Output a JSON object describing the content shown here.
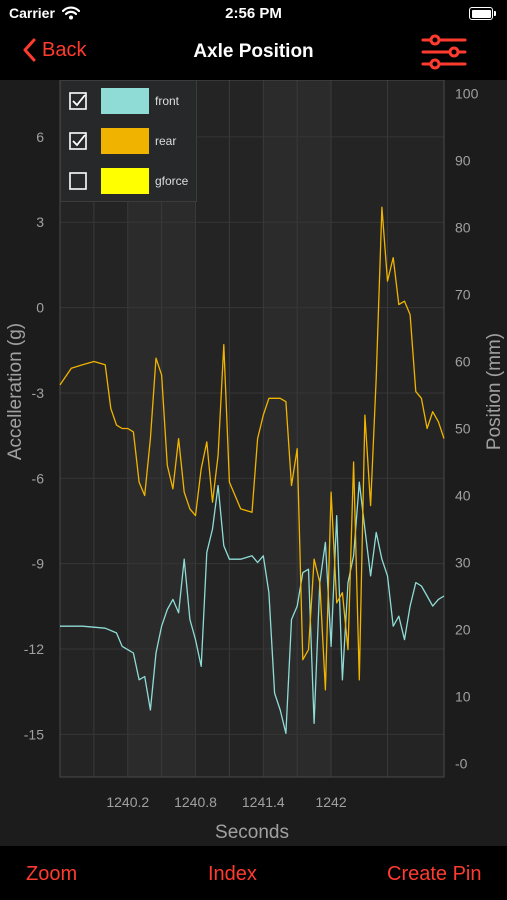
{
  "status_bar": {
    "carrier": "Carrier",
    "time": "2:56 PM"
  },
  "nav": {
    "back_label": "Back",
    "title": "Axle Position"
  },
  "toolbar": {
    "zoom": "Zoom",
    "index": "Index",
    "create_pin": "Create Pin"
  },
  "colors": {
    "accent": "#ff3b30",
    "front": "#8fdcd6",
    "rear": "#f0b400",
    "gforce": "#ffff00"
  },
  "legend": [
    {
      "label": "front",
      "checked": true,
      "color": "#8fdcd6"
    },
    {
      "label": "rear",
      "checked": true,
      "color": "#f0b400"
    },
    {
      "label": "gforce",
      "checked": false,
      "color": "#ffff00"
    }
  ],
  "chart_data": {
    "type": "line",
    "xlabel": "Seconds",
    "ylabel_left": "Accelleration (g)",
    "ylabel_right": "Position (mm)",
    "xlim": [
      1239.6,
      1243.0
    ],
    "ylim_left": [
      -16.5,
      8
    ],
    "ylim_right": [
      -2,
      102
    ],
    "x_ticks": [
      1240.2,
      1240.8,
      1241.4,
      1242
    ],
    "x_tick_labels": [
      "1240.2",
      "1240.8",
      "1241.4",
      "1242"
    ],
    "y_left_ticks": [
      6,
      3,
      0,
      -3,
      -6,
      -9,
      -12,
      -15
    ],
    "y_right_ticks": [
      100,
      90,
      80,
      70,
      60,
      50,
      40,
      30,
      20,
      10,
      0
    ],
    "y_right_tick_labels": [
      "100",
      "90",
      "80",
      "70",
      "60",
      "50",
      "40",
      "30",
      "20",
      "10",
      "-0"
    ],
    "grid": true,
    "series": [
      {
        "name": "front",
        "axis": "right",
        "x": [
          1239.6,
          1239.8,
          1240.0,
          1240.1,
          1240.15,
          1240.2,
          1240.25,
          1240.3,
          1240.35,
          1240.4,
          1240.45,
          1240.5,
          1240.55,
          1240.6,
          1240.65,
          1240.7,
          1240.75,
          1240.8,
          1240.85,
          1240.9,
          1240.95,
          1241.0,
          1241.05,
          1241.1,
          1241.2,
          1241.3,
          1241.35,
          1241.4,
          1241.45,
          1241.5,
          1241.55,
          1241.6,
          1241.65,
          1241.7,
          1241.75,
          1241.8,
          1241.85,
          1241.9,
          1241.95,
          1242.0,
          1242.05,
          1242.1,
          1242.15,
          1242.2,
          1242.25,
          1242.3,
          1242.35,
          1242.4,
          1242.45,
          1242.5,
          1242.55,
          1242.6,
          1242.65,
          1242.7,
          1242.75,
          1242.8,
          1242.85,
          1242.9,
          1242.95,
          1243.0
        ],
        "y": [
          20.5,
          20.5,
          20.2,
          19.5,
          17.5,
          17.0,
          16.5,
          12.5,
          13.0,
          8.0,
          16.5,
          20.5,
          23.0,
          24.5,
          22.5,
          30.5,
          21.5,
          18.5,
          14.5,
          31.5,
          35.0,
          41.5,
          32.5,
          30.5,
          30.5,
          31.0,
          30.0,
          31.0,
          25.5,
          10.5,
          8.0,
          4.5,
          21.5,
          23.5,
          28.5,
          29.0,
          6.0,
          27.0,
          33.0,
          17.5,
          37.0,
          12.5,
          27.0,
          31.0,
          42.0,
          35.0,
          28.0,
          34.5,
          30.5,
          28.0,
          20.5,
          22.0,
          18.5,
          23.5,
          27.0,
          26.5,
          25.0,
          23.5,
          24.5,
          25.0
        ]
      },
      {
        "name": "rear",
        "axis": "right",
        "x": [
          1239.6,
          1239.7,
          1239.8,
          1239.9,
          1240.0,
          1240.05,
          1240.1,
          1240.15,
          1240.2,
          1240.25,
          1240.3,
          1240.35,
          1240.4,
          1240.45,
          1240.5,
          1240.55,
          1240.6,
          1240.65,
          1240.7,
          1240.75,
          1240.8,
          1240.85,
          1240.9,
          1240.95,
          1241.0,
          1241.05,
          1241.1,
          1241.2,
          1241.3,
          1241.35,
          1241.4,
          1241.45,
          1241.5,
          1241.55,
          1241.6,
          1241.65,
          1241.7,
          1241.75,
          1241.8,
          1241.85,
          1241.9,
          1241.95,
          1242.0,
          1242.05,
          1242.1,
          1242.15,
          1242.2,
          1242.25,
          1242.3,
          1242.35,
          1242.4,
          1242.45,
          1242.5,
          1242.55,
          1242.6,
          1242.65,
          1242.7,
          1242.75,
          1242.8,
          1242.85,
          1242.9,
          1242.95,
          1243.0
        ],
        "y": [
          56.5,
          59.0,
          59.5,
          60.0,
          59.5,
          53.0,
          50.5,
          50.0,
          50.0,
          49.5,
          42.0,
          40.0,
          48.5,
          60.5,
          58.0,
          44.5,
          41.0,
          48.5,
          40.5,
          38.0,
          37.0,
          44.0,
          48.0,
          39.0,
          46.0,
          62.5,
          42.0,
          38.0,
          37.5,
          48.5,
          52.0,
          54.5,
          54.5,
          54.5,
          54.0,
          41.5,
          47.0,
          15.5,
          17.0,
          30.5,
          27.0,
          11.0,
          40.5,
          24.0,
          25.5,
          17.0,
          45.0,
          12.5,
          52.0,
          38.5,
          57.5,
          83.0,
          72.0,
          75.5,
          68.5,
          69.0,
          67.0,
          55.5,
          54.5,
          50.0,
          52.5,
          51.0,
          48.5
        ]
      }
    ]
  }
}
